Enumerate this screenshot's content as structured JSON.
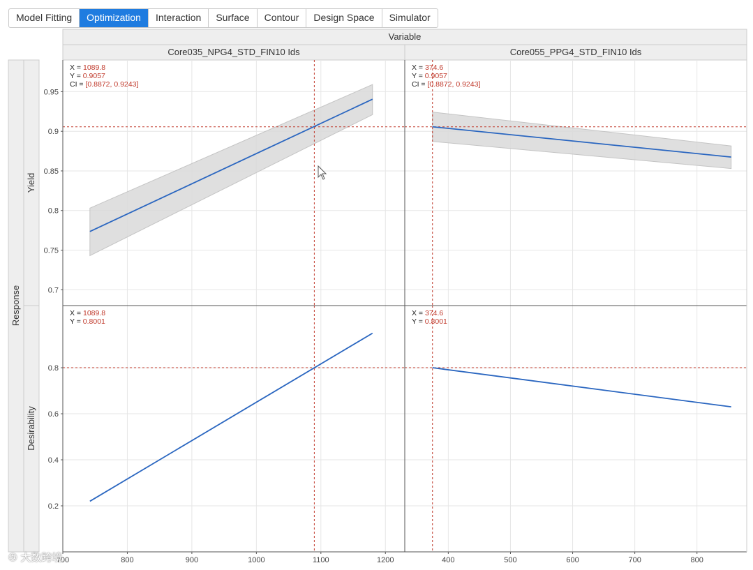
{
  "tabs": [
    {
      "label": "Model Fitting",
      "active": false
    },
    {
      "label": "Optimization",
      "active": true
    },
    {
      "label": "Interaction",
      "active": false
    },
    {
      "label": "Surface",
      "active": false
    },
    {
      "label": "Contour",
      "active": false
    },
    {
      "label": "Design Space",
      "active": false
    },
    {
      "label": "Simulator",
      "active": false
    }
  ],
  "grid_header": "Variable",
  "response_label": "Response",
  "watermark": "大数跨境",
  "colors": {
    "line": "#2a66c0",
    "crosshair": "#c0392b",
    "band": "#d9d9d9",
    "active_tab": "#1f7ce0"
  },
  "chart_data": [
    {
      "type": "line",
      "panel": "top-left",
      "column": "Core035_NPG4_STD_FIN10 Ids",
      "row": "Yield",
      "x": [
        742,
        1180
      ],
      "y": [
        0.7735,
        0.9405
      ],
      "ci_lower": [
        0.743,
        0.921
      ],
      "ci_upper": [
        0.803,
        0.959
      ],
      "xlim": [
        700,
        1230
      ],
      "ylim": [
        0.68,
        0.99
      ],
      "yticks": [
        0.7,
        0.75,
        0.8,
        0.85,
        0.9,
        0.95
      ],
      "yticklabels": [
        "0.7",
        "0.75",
        "0.8",
        "0.85",
        "0.9",
        "0.95"
      ],
      "crosshair": {
        "x": 1089.8,
        "y": 0.9057
      },
      "readout": [
        "X = 1089.8",
        "Y = 0.9057",
        "CI = [0.8872, 0.9243]"
      ]
    },
    {
      "type": "line",
      "panel": "top-right",
      "column": "Core055_PPG4_STD_FIN10 Ids",
      "row": "Yield",
      "x": [
        374.6,
        855
      ],
      "y": [
        0.9057,
        0.8675
      ],
      "ci_lower": [
        0.8872,
        0.853
      ],
      "ci_upper": [
        0.9243,
        0.8815
      ],
      "xlim": [
        330,
        880
      ],
      "ylim": [
        0.68,
        0.99
      ],
      "crosshair": {
        "x": 374.6,
        "y": 0.9057
      },
      "readout": [
        "X = 374.6",
        "Y = 0.9057",
        "CI = [0.8872, 0.9243]"
      ]
    },
    {
      "type": "line",
      "panel": "bottom-left",
      "column": "Core035_NPG4_STD_FIN10 Ids",
      "row": "Desirability",
      "x": [
        742,
        1180
      ],
      "y": [
        0.22,
        0.95
      ],
      "xlim": [
        700,
        1230
      ],
      "ylim": [
        0.0,
        1.07
      ],
      "xticks": [
        700,
        800,
        900,
        1000,
        1100,
        1200
      ],
      "xticklabels": [
        "700",
        "800",
        "900",
        "1000",
        "1100",
        "1200"
      ],
      "yticks": [
        0.2,
        0.4,
        0.6,
        0.8
      ],
      "yticklabels": [
        "0.2",
        "0.4",
        "0.6",
        "0.8"
      ],
      "crosshair": {
        "x": 1089.8,
        "y": 0.8001
      },
      "readout": [
        "X = 1089.8",
        "Y = 0.8001"
      ]
    },
    {
      "type": "line",
      "panel": "bottom-right",
      "column": "Core055_PPG4_STD_FIN10 Ids",
      "row": "Desirability",
      "x": [
        374.6,
        855
      ],
      "y": [
        0.8001,
        0.63
      ],
      "xlim": [
        330,
        880
      ],
      "ylim": [
        0.0,
        1.07
      ],
      "xticks": [
        400,
        500,
        600,
        700,
        800
      ],
      "xticklabels": [
        "400",
        "500",
        "600",
        "700",
        "800"
      ],
      "crosshair": {
        "x": 374.6,
        "y": 0.8001
      },
      "readout": [
        "X = 374.6",
        "Y = 0.8001"
      ]
    }
  ]
}
